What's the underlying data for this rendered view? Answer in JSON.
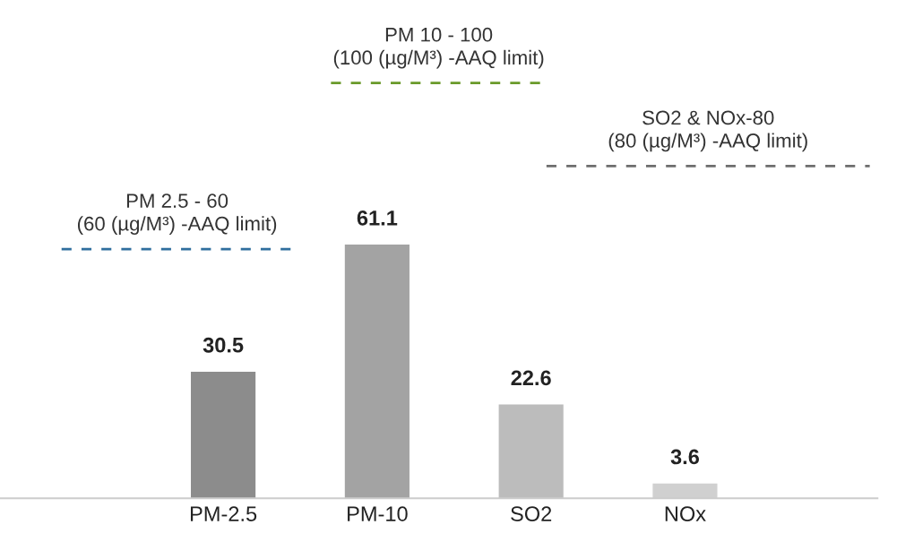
{
  "chart_data": {
    "type": "bar",
    "categories": [
      "PM-2.5",
      "PM-10",
      "SO2",
      "NOx"
    ],
    "values": [
      30.5,
      61.1,
      22.6,
      3.6
    ],
    "colors": [
      "#8c8c8c",
      "#a3a3a3",
      "#bcbcbc",
      "#d0d0d0"
    ],
    "data_labels": true,
    "tick_labels": "x",
    "grid": false,
    "legend": false,
    "ref_lines": [
      {
        "axis": "y",
        "value": 60,
        "label": "PM 2.5 - 60\n(60 (µg/M³) -AAQ limit)",
        "color": "#2f6e9e",
        "line_style": "dashed"
      },
      {
        "axis": "y",
        "value": 100,
        "label": "PM 10 - 100\n(100 (µg/M³) -AAQ limit)",
        "color": "#6a9a2a",
        "line_style": "dashed"
      },
      {
        "axis": "y",
        "value": 80,
        "label": "SO2 & NOx-80\n(80 (µg/M³) -AAQ limit)",
        "color": "#6e6e6e",
        "line_style": "dashed"
      }
    ]
  }
}
